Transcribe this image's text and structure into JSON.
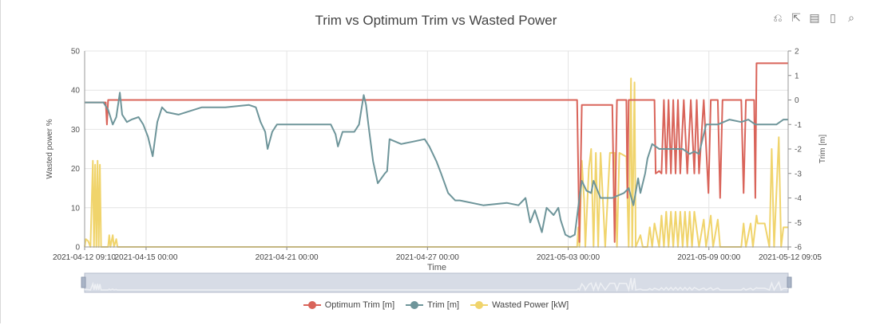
{
  "chart_data": {
    "type": "line",
    "title": "Trim vs Optimum Trim vs Wasted Power",
    "xlabel": "Time",
    "ylabel_left": "Wasted power %",
    "ylabel_right": "Trim [m]",
    "x_range": [
      "2021-04-12 09:10",
      "2021-05-12 09:05"
    ],
    "x_tick_labels": [
      "2021-04-12 09:10",
      "2021-04-15 00:00",
      "2021-04-21 00:00",
      "2021-04-27 00:00",
      "2021-05-03 00:00",
      "2021-05-09 00:00",
      "2021-05-12 09:05"
    ],
    "x_tick_days": [
      0,
      2.62,
      8.62,
      14.62,
      20.62,
      26.62,
      30
    ],
    "ylim_left": [
      0,
      50
    ],
    "y_ticks_left": [
      0,
      10,
      20,
      30,
      40,
      50
    ],
    "ylim_right": [
      -6,
      2
    ],
    "y_ticks_right": [
      -6,
      -5,
      -4,
      -3,
      -2,
      -1,
      0,
      1,
      2
    ],
    "grid": true,
    "legend_position": "bottom",
    "series": [
      {
        "name": "Optimum Trim [m]",
        "axis": "right",
        "color": "#d9645a",
        "points": [
          [
            0,
            -0.1
          ],
          [
            0.9,
            -0.1
          ],
          [
            0.95,
            -1
          ],
          [
            1.0,
            0.0
          ],
          [
            21.0,
            0.0
          ],
          [
            21.1,
            -5.8
          ],
          [
            21.2,
            -0.2
          ],
          [
            22.5,
            -0.2
          ],
          [
            22.6,
            -5.8
          ],
          [
            22.7,
            0.0
          ],
          [
            23.1,
            0.0
          ],
          [
            23.15,
            -4.0
          ],
          [
            23.2,
            0.0
          ],
          [
            24.3,
            0.0
          ],
          [
            24.35,
            -3.0
          ],
          [
            24.5,
            -2.9
          ],
          [
            24.6,
            -3.0
          ],
          [
            24.7,
            0.0
          ],
          [
            24.8,
            -3.0
          ],
          [
            24.9,
            0.0
          ],
          [
            25.0,
            -3.0
          ],
          [
            25.1,
            0.0
          ],
          [
            25.2,
            -3.0
          ],
          [
            25.3,
            0.0
          ],
          [
            25.4,
            -3.0
          ],
          [
            25.55,
            0.0
          ],
          [
            25.7,
            -3.0
          ],
          [
            25.85,
            0.0
          ],
          [
            26.0,
            -3.0
          ],
          [
            26.1,
            0.0
          ],
          [
            26.2,
            -3.0
          ],
          [
            26.4,
            0.0
          ],
          [
            26.6,
            -3.8
          ],
          [
            26.7,
            0.0
          ],
          [
            27.0,
            0.0
          ],
          [
            27.1,
            -4.0
          ],
          [
            27.2,
            0.0
          ],
          [
            28.0,
            0.0
          ],
          [
            28.1,
            -3.8
          ],
          [
            28.2,
            0.0
          ],
          [
            28.55,
            0.0
          ],
          [
            28.6,
            -4.0
          ],
          [
            28.65,
            1.5
          ],
          [
            30,
            1.5
          ]
        ]
      },
      {
        "name": "Trim [m]",
        "axis": "right",
        "color": "#6e959a",
        "points": [
          [
            0,
            -0.1
          ],
          [
            0.6,
            -0.1
          ],
          [
            0.8,
            -0.1
          ],
          [
            1.0,
            -0.4
          ],
          [
            1.2,
            -1.0
          ],
          [
            1.35,
            -0.7
          ],
          [
            1.5,
            0.3
          ],
          [
            1.6,
            -0.6
          ],
          [
            1.8,
            -0.9
          ],
          [
            2.0,
            -0.8
          ],
          [
            2.3,
            -0.7
          ],
          [
            2.5,
            -1.0
          ],
          [
            2.7,
            -1.5
          ],
          [
            2.9,
            -2.3
          ],
          [
            3.1,
            -0.9
          ],
          [
            3.3,
            -0.3
          ],
          [
            3.5,
            -0.5
          ],
          [
            4.0,
            -0.6
          ],
          [
            5.0,
            -0.3
          ],
          [
            6.0,
            -0.3
          ],
          [
            7.0,
            -0.2
          ],
          [
            7.3,
            -0.3
          ],
          [
            7.5,
            -0.9
          ],
          [
            7.7,
            -1.3
          ],
          [
            7.8,
            -2.0
          ],
          [
            8.0,
            -1.3
          ],
          [
            8.2,
            -1.0
          ],
          [
            9.0,
            -1.0
          ],
          [
            10.0,
            -1.0
          ],
          [
            10.5,
            -1.0
          ],
          [
            10.7,
            -1.4
          ],
          [
            10.8,
            -1.9
          ],
          [
            11.0,
            -1.3
          ],
          [
            11.5,
            -1.3
          ],
          [
            11.7,
            -1.0
          ],
          [
            11.8,
            -0.4
          ],
          [
            11.9,
            0.2
          ],
          [
            12.0,
            -0.2
          ],
          [
            12.1,
            -1.0
          ],
          [
            12.3,
            -2.5
          ],
          [
            12.5,
            -3.4
          ],
          [
            12.8,
            -3.0
          ],
          [
            12.9,
            -2.9
          ],
          [
            13.0,
            -1.6
          ],
          [
            13.5,
            -1.8
          ],
          [
            14.0,
            -1.7
          ],
          [
            14.5,
            -1.6
          ],
          [
            14.7,
            -1.9
          ],
          [
            15.0,
            -2.5
          ],
          [
            15.2,
            -3.0
          ],
          [
            15.5,
            -3.8
          ],
          [
            15.8,
            -4.1
          ],
          [
            16.0,
            -4.1
          ],
          [
            17.0,
            -4.3
          ],
          [
            18.0,
            -4.2
          ],
          [
            18.5,
            -4.3
          ],
          [
            18.8,
            -4.0
          ],
          [
            19.0,
            -5.0
          ],
          [
            19.2,
            -4.5
          ],
          [
            19.5,
            -5.4
          ],
          [
            19.7,
            -4.4
          ],
          [
            20.0,
            -4.7
          ],
          [
            20.2,
            -4.4
          ],
          [
            20.3,
            -4.9
          ],
          [
            20.5,
            -5.5
          ],
          [
            20.7,
            -5.6
          ],
          [
            20.9,
            -5.5
          ],
          [
            21.1,
            -4.0
          ],
          [
            21.2,
            -3.3
          ],
          [
            21.4,
            -3.7
          ],
          [
            21.6,
            -3.8
          ],
          [
            21.7,
            -3.3
          ],
          [
            22.0,
            -4.0
          ],
          [
            22.5,
            -4.0
          ],
          [
            23.0,
            -3.8
          ],
          [
            23.2,
            -3.6
          ],
          [
            23.4,
            -4.3
          ],
          [
            23.6,
            -3.2
          ],
          [
            23.7,
            -3.8
          ],
          [
            23.9,
            -3.0
          ],
          [
            24.0,
            -2.4
          ],
          [
            24.2,
            -1.8
          ],
          [
            24.5,
            -2.0
          ],
          [
            25.0,
            -2.0
          ],
          [
            25.5,
            -2.0
          ],
          [
            25.8,
            -2.2
          ],
          [
            26.0,
            -2.1
          ],
          [
            26.2,
            -2.2
          ],
          [
            26.5,
            -1.0
          ],
          [
            27.0,
            -1.0
          ],
          [
            27.5,
            -0.8
          ],
          [
            28.0,
            -0.9
          ],
          [
            28.3,
            -0.8
          ],
          [
            28.6,
            -1.0
          ],
          [
            29.0,
            -1.0
          ],
          [
            29.5,
            -1.0
          ],
          [
            29.8,
            -0.8
          ],
          [
            30,
            -0.8
          ]
        ]
      },
      {
        "name": "Wasted Power [kW]",
        "axis": "left",
        "color": "#f0d46c",
        "points": [
          [
            0,
            0
          ],
          [
            0.05,
            2
          ],
          [
            0.15,
            1.5
          ],
          [
            0.25,
            0
          ],
          [
            0.35,
            22
          ],
          [
            0.4,
            0
          ],
          [
            0.45,
            21
          ],
          [
            0.5,
            0
          ],
          [
            0.55,
            22
          ],
          [
            0.6,
            0
          ],
          [
            0.65,
            21
          ],
          [
            0.7,
            0
          ],
          [
            1.0,
            0
          ],
          [
            1.05,
            3
          ],
          [
            1.1,
            0
          ],
          [
            1.2,
            3
          ],
          [
            1.25,
            0
          ],
          [
            1.35,
            2
          ],
          [
            1.4,
            0
          ],
          [
            21.0,
            0
          ],
          [
            21.05,
            5
          ],
          [
            21.1,
            0
          ],
          [
            21.2,
            22
          ],
          [
            21.3,
            12
          ],
          [
            21.35,
            0
          ],
          [
            21.5,
            20
          ],
          [
            21.6,
            25
          ],
          [
            21.7,
            0
          ],
          [
            21.8,
            24
          ],
          [
            21.9,
            0
          ],
          [
            22.0,
            24
          ],
          [
            22.2,
            0
          ],
          [
            22.4,
            24
          ],
          [
            22.6,
            24
          ],
          [
            22.7,
            0
          ],
          [
            22.8,
            24
          ],
          [
            23.1,
            23
          ],
          [
            23.2,
            0
          ],
          [
            23.3,
            43
          ],
          [
            23.35,
            0
          ],
          [
            23.45,
            42
          ],
          [
            23.5,
            0
          ],
          [
            23.7,
            3
          ],
          [
            23.8,
            0
          ],
          [
            24.0,
            0
          ],
          [
            24.1,
            5
          ],
          [
            24.2,
            0
          ],
          [
            24.3,
            6
          ],
          [
            24.5,
            0
          ],
          [
            24.6,
            8
          ],
          [
            24.7,
            0
          ],
          [
            24.8,
            9
          ],
          [
            24.9,
            0
          ],
          [
            25.0,
            9
          ],
          [
            25.1,
            0
          ],
          [
            25.2,
            9
          ],
          [
            25.3,
            0
          ],
          [
            25.4,
            9
          ],
          [
            25.5,
            0
          ],
          [
            25.6,
            9
          ],
          [
            25.7,
            0
          ],
          [
            25.8,
            9
          ],
          [
            25.9,
            0
          ],
          [
            26.0,
            9
          ],
          [
            26.2,
            0
          ],
          [
            26.4,
            7
          ],
          [
            26.5,
            0
          ],
          [
            26.7,
            8
          ],
          [
            26.8,
            0
          ],
          [
            27.0,
            7
          ],
          [
            27.1,
            0
          ],
          [
            28.0,
            0
          ],
          [
            28.1,
            6
          ],
          [
            28.2,
            0
          ],
          [
            28.4,
            6
          ],
          [
            28.5,
            0
          ],
          [
            28.65,
            8
          ],
          [
            28.7,
            6
          ],
          [
            29.0,
            6
          ],
          [
            29.2,
            0
          ],
          [
            29.3,
            25
          ],
          [
            29.4,
            0
          ],
          [
            29.6,
            28
          ],
          [
            29.7,
            0
          ],
          [
            29.8,
            5
          ],
          [
            30,
            5
          ]
        ]
      }
    ]
  },
  "toolbox": {
    "icons": [
      "restore-icon",
      "save-image-icon",
      "data-view-icon",
      "export-icon",
      "zoom-icon"
    ],
    "glyphs": [
      "⎌",
      "⇱",
      "▤",
      "▯",
      "⌕"
    ]
  }
}
